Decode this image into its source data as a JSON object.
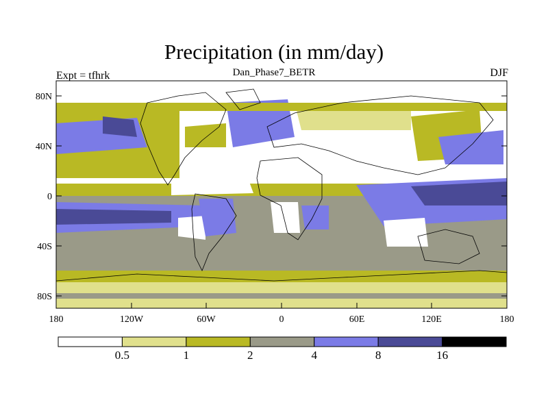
{
  "title": "Precipitation (in mm/day)",
  "subtitle": "Dan_Phase7_BETR",
  "left_string": "Expt = tfhrk",
  "right_string": "DJF",
  "lat_ticks": [
    "80N",
    "40N",
    "0",
    "40S",
    "80S"
  ],
  "lon_ticks": [
    "180",
    "120W",
    "60W",
    "0",
    "60E",
    "120E",
    "180"
  ],
  "colorbar": {
    "labels": [
      "0.5",
      "1",
      "2",
      "4",
      "8",
      "16"
    ],
    "colors": [
      "#ffffff",
      "#e0e08c",
      "#b9b924",
      "#9a9a88",
      "#7b7be6",
      "#4a4a96",
      "#000000"
    ]
  }
}
